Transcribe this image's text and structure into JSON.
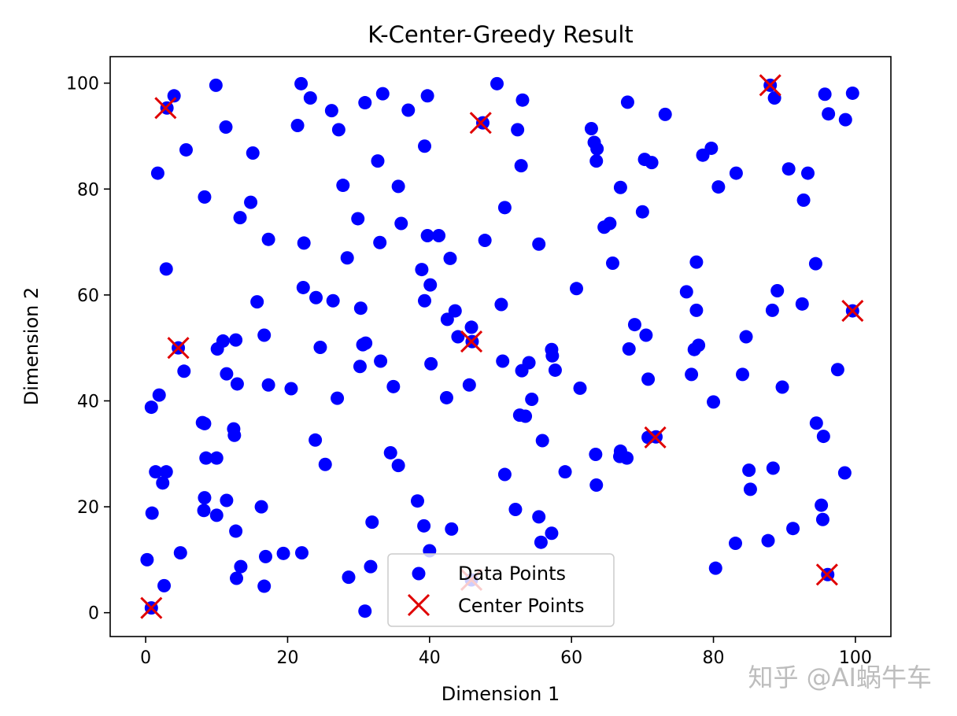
{
  "chart_data": {
    "type": "scatter",
    "title": "K-Center-Greedy Result",
    "xlabel": "Dimension 1",
    "ylabel": "Dimension 2",
    "xlim": [
      -5,
      105
    ],
    "ylim": [
      -4.5,
      105
    ],
    "xticks": [
      0,
      20,
      40,
      60,
      80,
      100
    ],
    "yticks": [
      0,
      20,
      40,
      60,
      80,
      100
    ],
    "grid": false,
    "legend_position": "bottom-center",
    "series": [
      {
        "name": "Data Points",
        "marker": "circle",
        "color": "#0000ff",
        "points": [
          [
            4.0,
            97.6
          ],
          [
            9.9,
            99.6
          ],
          [
            21.9,
            99.9
          ],
          [
            49.5,
            99.9
          ],
          [
            3.0,
            95.3
          ],
          [
            23.2,
            97.2
          ],
          [
            26.2,
            94.8
          ],
          [
            30.9,
            96.3
          ],
          [
            33.4,
            98.0
          ],
          [
            37.0,
            94.9
          ],
          [
            39.7,
            97.6
          ],
          [
            47.5,
            92.5
          ],
          [
            53.1,
            96.8
          ],
          [
            11.3,
            91.7
          ],
          [
            21.4,
            92.0
          ],
          [
            27.2,
            91.2
          ],
          [
            52.4,
            91.2
          ],
          [
            5.7,
            87.4
          ],
          [
            15.1,
            86.8
          ],
          [
            39.3,
            88.1
          ],
          [
            1.7,
            83.0
          ],
          [
            32.7,
            85.3
          ],
          [
            52.9,
            84.4
          ],
          [
            8.3,
            78.5
          ],
          [
            27.8,
            80.7
          ],
          [
            35.6,
            80.5
          ],
          [
            14.8,
            77.5
          ],
          [
            13.3,
            74.6
          ],
          [
            29.9,
            74.4
          ],
          [
            36.0,
            73.5
          ],
          [
            50.6,
            76.5
          ],
          [
            17.3,
            70.5
          ],
          [
            22.3,
            69.8
          ],
          [
            33.0,
            69.9
          ],
          [
            39.7,
            71.2
          ],
          [
            41.3,
            71.2
          ],
          [
            47.8,
            70.3
          ],
          [
            55.4,
            69.6
          ],
          [
            2.9,
            64.9
          ],
          [
            28.4,
            67.0
          ],
          [
            38.9,
            64.8
          ],
          [
            42.9,
            66.9
          ],
          [
            22.2,
            61.4
          ],
          [
            24.0,
            59.5
          ],
          [
            26.4,
            58.9
          ],
          [
            15.7,
            58.7
          ],
          [
            30.3,
            57.5
          ],
          [
            39.3,
            58.9
          ],
          [
            40.1,
            61.9
          ],
          [
            43.6,
            57.0
          ],
          [
            50.1,
            58.2
          ],
          [
            4.6,
            50.0
          ],
          [
            10.1,
            49.8
          ],
          [
            10.9,
            51.3
          ],
          [
            12.7,
            51.5
          ],
          [
            16.7,
            52.4
          ],
          [
            24.6,
            50.1
          ],
          [
            30.6,
            50.6
          ],
          [
            31.0,
            50.9
          ],
          [
            42.5,
            55.4
          ],
          [
            44.0,
            52.1
          ],
          [
            45.9,
            53.9
          ],
          [
            46.0,
            51.2
          ],
          [
            5.4,
            45.6
          ],
          [
            11.4,
            45.1
          ],
          [
            12.9,
            43.2
          ],
          [
            17.3,
            43.0
          ],
          [
            20.5,
            42.3
          ],
          [
            30.2,
            46.5
          ],
          [
            33.1,
            47.5
          ],
          [
            34.9,
            42.7
          ],
          [
            40.2,
            47.0
          ],
          [
            45.6,
            43.0
          ],
          [
            50.3,
            47.5
          ],
          [
            53.0,
            45.7
          ],
          [
            54.0,
            47.2
          ],
          [
            0.8,
            38.8
          ],
          [
            1.9,
            41.1
          ],
          [
            8.0,
            35.9
          ],
          [
            8.3,
            35.7
          ],
          [
            12.4,
            34.7
          ],
          [
            12.5,
            33.5
          ],
          [
            27.0,
            40.5
          ],
          [
            42.4,
            40.6
          ],
          [
            54.4,
            40.3
          ],
          [
            52.7,
            37.3
          ],
          [
            53.5,
            37.1
          ],
          [
            23.9,
            32.6
          ],
          [
            34.5,
            30.2
          ],
          [
            35.6,
            27.8
          ],
          [
            25.3,
            28.0
          ],
          [
            8.5,
            29.2
          ],
          [
            10.0,
            29.2
          ],
          [
            1.4,
            26.6
          ],
          [
            2.9,
            26.6
          ],
          [
            2.4,
            24.5
          ],
          [
            8.3,
            21.7
          ],
          [
            8.2,
            19.3
          ],
          [
            10.0,
            18.4
          ],
          [
            11.4,
            21.2
          ],
          [
            16.3,
            20.0
          ],
          [
            0.9,
            18.8
          ],
          [
            12.7,
            15.4
          ],
          [
            31.9,
            17.1
          ],
          [
            38.3,
            21.1
          ],
          [
            39.2,
            16.4
          ],
          [
            43.1,
            15.8
          ],
          [
            50.6,
            26.1
          ],
          [
            55.9,
            32.5
          ],
          [
            52.1,
            19.5
          ],
          [
            55.4,
            18.1
          ],
          [
            55.7,
            13.3
          ],
          [
            57.2,
            15.0
          ],
          [
            0.2,
            10.0
          ],
          [
            4.9,
            11.3
          ],
          [
            2.6,
            5.1
          ],
          [
            13.4,
            8.7
          ],
          [
            12.8,
            6.5
          ],
          [
            16.9,
            10.6
          ],
          [
            16.7,
            5.0
          ],
          [
            19.4,
            11.2
          ],
          [
            22.0,
            11.3
          ],
          [
            28.6,
            6.7
          ],
          [
            31.7,
            8.7
          ],
          [
            40.0,
            11.7
          ],
          [
            30.9,
            0.3
          ],
          [
            45.9,
            6.2
          ],
          [
            62.8,
            91.4
          ],
          [
            63.2,
            88.8
          ],
          [
            63.6,
            87.6
          ],
          [
            63.5,
            85.3
          ],
          [
            67.9,
            96.4
          ],
          [
            73.2,
            94.1
          ],
          [
            70.3,
            85.6
          ],
          [
            71.3,
            85.0
          ],
          [
            66.9,
            80.3
          ],
          [
            78.5,
            86.4
          ],
          [
            79.7,
            87.7
          ],
          [
            80.7,
            80.4
          ],
          [
            83.2,
            83.0
          ],
          [
            88.0,
            99.6
          ],
          [
            88.6,
            97.2
          ],
          [
            95.7,
            97.9
          ],
          [
            96.2,
            94.2
          ],
          [
            98.6,
            93.1
          ],
          [
            99.6,
            98.1
          ],
          [
            90.6,
            83.8
          ],
          [
            93.3,
            83.0
          ],
          [
            92.7,
            77.9
          ],
          [
            64.6,
            72.8
          ],
          [
            65.4,
            73.5
          ],
          [
            70.0,
            75.7
          ],
          [
            65.8,
            66.0
          ],
          [
            77.6,
            66.2
          ],
          [
            60.7,
            61.2
          ],
          [
            76.2,
            60.6
          ],
          [
            77.6,
            57.1
          ],
          [
            68.9,
            54.4
          ],
          [
            70.5,
            52.4
          ],
          [
            88.3,
            57.1
          ],
          [
            89.0,
            60.8
          ],
          [
            92.5,
            58.3
          ],
          [
            94.4,
            65.9
          ],
          [
            99.6,
            57.0
          ],
          [
            57.2,
            49.7
          ],
          [
            57.3,
            48.5
          ],
          [
            57.7,
            45.8
          ],
          [
            68.1,
            49.8
          ],
          [
            77.3,
            49.7
          ],
          [
            77.9,
            50.5
          ],
          [
            76.9,
            45.0
          ],
          [
            84.1,
            45.0
          ],
          [
            84.6,
            52.1
          ],
          [
            61.2,
            42.4
          ],
          [
            70.8,
            44.1
          ],
          [
            80.0,
            39.8
          ],
          [
            89.7,
            42.6
          ],
          [
            94.5,
            35.8
          ],
          [
            95.5,
            33.3
          ],
          [
            97.5,
            45.9
          ],
          [
            70.8,
            33.1
          ],
          [
            71.9,
            33.2
          ],
          [
            66.9,
            30.5
          ],
          [
            66.8,
            29.5
          ],
          [
            67.8,
            29.2
          ],
          [
            63.4,
            29.9
          ],
          [
            59.1,
            26.6
          ],
          [
            63.5,
            24.1
          ],
          [
            85.0,
            26.9
          ],
          [
            85.2,
            23.3
          ],
          [
            88.4,
            27.3
          ],
          [
            95.2,
            20.3
          ],
          [
            95.4,
            17.6
          ],
          [
            98.5,
            26.4
          ],
          [
            91.2,
            15.9
          ],
          [
            83.1,
            13.1
          ],
          [
            87.7,
            13.6
          ],
          [
            80.3,
            8.4
          ],
          [
            96.1,
            7.2
          ],
          [
            0.8,
            0.9
          ]
        ]
      },
      {
        "name": "Center Points",
        "marker": "x",
        "color": "#e00000",
        "points": [
          [
            2.8,
            95.3
          ],
          [
            47.2,
            92.5
          ],
          [
            88.0,
            99.6
          ],
          [
            4.6,
            50.0
          ],
          [
            45.9,
            51.2
          ],
          [
            99.6,
            57.0
          ],
          [
            71.8,
            33.1
          ],
          [
            96.0,
            7.2
          ],
          [
            0.8,
            0.9
          ],
          [
            45.9,
            6.2
          ]
        ]
      }
    ]
  },
  "watermark": "知乎 @AI蜗牛车"
}
